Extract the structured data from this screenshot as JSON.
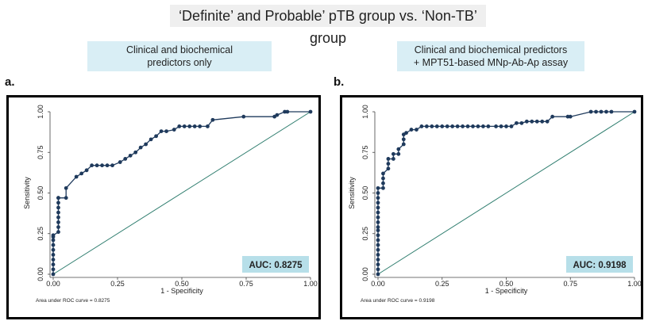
{
  "title": "‘Definite’ and Probable’ pTB group vs. ‘Non-TB’ group",
  "panels": [
    {
      "label": "a.",
      "subtitle_lines": [
        "Clinical and biochemical",
        "predictors only"
      ]
    },
    {
      "label": "b.",
      "subtitle_lines": [
        "Clinical and biochemical predictors",
        "+ MPT51-based MNp-Ab-Ap assay"
      ]
    }
  ],
  "colors": {
    "curve": "#1f3a5c",
    "reference": "#2e7d6e",
    "auc_box": "#b7dfe9",
    "subtitle_box": "#d9eef5"
  },
  "chart_data": [
    {
      "type": "line",
      "xlabel": "1 - Specificity",
      "ylabel": "Sensitivity",
      "xlim": [
        0,
        1
      ],
      "ylim": [
        0,
        1
      ],
      "xticks": [
        "0.00",
        "0.25",
        "0.50",
        "0.75",
        "1.00"
      ],
      "yticks": [
        "0.00",
        "0.25",
        "0.50",
        "0.75",
        "1.00"
      ],
      "auc_label": "AUC: 0.8275",
      "note": "Area under ROC curve = 0.8275",
      "series": [
        {
          "name": "ROC",
          "x": [
            0,
            0,
            0,
            0,
            0,
            0,
            0,
            0,
            0,
            0,
            0.02,
            0.02,
            0.02,
            0.02,
            0.02,
            0.02,
            0.02,
            0.02,
            0.02,
            0.05,
            0.05,
            0.09,
            0.11,
            0.13,
            0.15,
            0.17,
            0.19,
            0.21,
            0.23,
            0.26,
            0.28,
            0.3,
            0.32,
            0.34,
            0.36,
            0.38,
            0.4,
            0.42,
            0.44,
            0.47,
            0.49,
            0.51,
            0.53,
            0.55,
            0.57,
            0.6,
            0.62,
            0.74,
            0.86,
            0.87,
            0.9,
            0.91,
            1.0
          ],
          "y": [
            0,
            0.03,
            0.06,
            0.09,
            0.12,
            0.15,
            0.18,
            0.21,
            0.23,
            0.24,
            0.26,
            0.29,
            0.32,
            0.35,
            0.38,
            0.41,
            0.44,
            0.47,
            0.47,
            0.47,
            0.53,
            0.6,
            0.62,
            0.64,
            0.67,
            0.67,
            0.67,
            0.67,
            0.67,
            0.69,
            0.71,
            0.73,
            0.75,
            0.78,
            0.8,
            0.83,
            0.85,
            0.88,
            0.88,
            0.89,
            0.91,
            0.91,
            0.91,
            0.91,
            0.91,
            0.91,
            0.95,
            0.97,
            0.97,
            0.98,
            1.0,
            1.0,
            1.0
          ]
        },
        {
          "name": "Reference",
          "x": [
            0,
            1
          ],
          "y": [
            0,
            1
          ]
        }
      ]
    },
    {
      "type": "line",
      "xlabel": "1 - Specificity",
      "ylabel": "Sensitivity",
      "xlim": [
        0,
        1
      ],
      "ylim": [
        0,
        1
      ],
      "xticks": [
        "0.00",
        "0.25",
        "0.50",
        "0.75",
        "1.00"
      ],
      "yticks": [
        "0.00",
        "0.25",
        "0.50",
        "0.75",
        "1.00"
      ],
      "auc_label": "AUC: 0.9198",
      "note": "Area under ROC curve = 0.9198",
      "series": [
        {
          "name": "ROC",
          "x": [
            0,
            0,
            0,
            0,
            0,
            0,
            0,
            0,
            0,
            0,
            0,
            0,
            0,
            0,
            0,
            0,
            0,
            0,
            0,
            0.02,
            0.02,
            0.02,
            0.02,
            0.04,
            0.04,
            0.04,
            0.06,
            0.06,
            0.08,
            0.08,
            0.1,
            0.1,
            0.1,
            0.11,
            0.13,
            0.15,
            0.17,
            0.19,
            0.21,
            0.23,
            0.25,
            0.27,
            0.29,
            0.31,
            0.33,
            0.35,
            0.37,
            0.39,
            0.41,
            0.43,
            0.46,
            0.48,
            0.5,
            0.52,
            0.54,
            0.56,
            0.58,
            0.6,
            0.62,
            0.64,
            0.66,
            0.68,
            0.74,
            0.75,
            0.83,
            0.85,
            0.87,
            0.89,
            0.91,
            1.0
          ],
          "y": [
            0,
            0.03,
            0.06,
            0.09,
            0.12,
            0.15,
            0.18,
            0.21,
            0.24,
            0.27,
            0.29,
            0.32,
            0.35,
            0.38,
            0.41,
            0.44,
            0.47,
            0.5,
            0.53,
            0.53,
            0.56,
            0.59,
            0.62,
            0.65,
            0.68,
            0.71,
            0.71,
            0.74,
            0.74,
            0.77,
            0.8,
            0.83,
            0.86,
            0.87,
            0.89,
            0.89,
            0.91,
            0.91,
            0.91,
            0.91,
            0.91,
            0.91,
            0.91,
            0.91,
            0.91,
            0.91,
            0.91,
            0.91,
            0.91,
            0.91,
            0.91,
            0.91,
            0.91,
            0.91,
            0.93,
            0.93,
            0.94,
            0.94,
            0.94,
            0.94,
            0.94,
            0.97,
            0.97,
            0.97,
            1.0,
            1.0,
            1.0,
            1.0,
            1.0,
            1.0
          ]
        },
        {
          "name": "Reference",
          "x": [
            0,
            1
          ],
          "y": [
            0,
            1
          ]
        }
      ]
    }
  ]
}
